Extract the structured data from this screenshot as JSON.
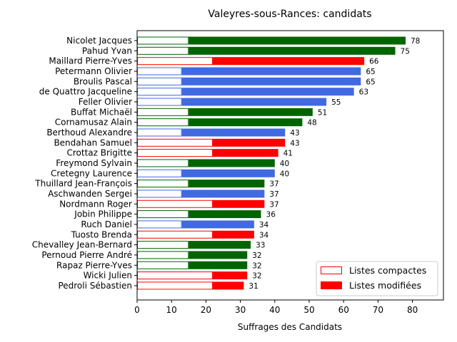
{
  "chart_data": {
    "type": "bar",
    "orientation": "horizontal",
    "title": "Valeyres-sous-Rances: candidats",
    "xlabel": "Suffrages des Candidats",
    "ylabel": "",
    "xlim": [
      0,
      89
    ],
    "xticks": [
      0,
      10,
      20,
      30,
      40,
      50,
      60,
      70,
      80
    ],
    "grid": false,
    "legend": {
      "placement": "lower-right",
      "entries": [
        {
          "name": "Listes compactes",
          "style": "outline",
          "color": "#ff0000"
        },
        {
          "name": "Listes modifiées",
          "style": "filled",
          "color": "#ff0000"
        }
      ]
    },
    "party_colors": {
      "green": "#006400",
      "red": "#ff0000",
      "blue": "#4169e1"
    },
    "candidates": [
      {
        "name": "Nicolet Jacques",
        "total": 78,
        "compact": 15,
        "party": "green"
      },
      {
        "name": "Pahud Yvan",
        "total": 75,
        "compact": 15,
        "party": "green"
      },
      {
        "name": "Maillard Pierre-Yves",
        "total": 66,
        "compact": 22,
        "party": "red"
      },
      {
        "name": "Petermann Olivier",
        "total": 65,
        "compact": 13,
        "party": "blue"
      },
      {
        "name": "Broulis Pascal",
        "total": 65,
        "compact": 13,
        "party": "blue"
      },
      {
        "name": "de Quattro Jacqueline",
        "total": 63,
        "compact": 13,
        "party": "blue"
      },
      {
        "name": "Feller Olivier",
        "total": 55,
        "compact": 13,
        "party": "blue"
      },
      {
        "name": "Buffat Michaël",
        "total": 51,
        "compact": 15,
        "party": "green"
      },
      {
        "name": "Cornamusaz Alain",
        "total": 48,
        "compact": 15,
        "party": "green"
      },
      {
        "name": "Berthoud Alexandre",
        "total": 43,
        "compact": 13,
        "party": "blue"
      },
      {
        "name": "Bendahan Samuel",
        "total": 43,
        "compact": 22,
        "party": "red"
      },
      {
        "name": "Crottaz Brigitte",
        "total": 41,
        "compact": 22,
        "party": "red"
      },
      {
        "name": "Freymond Sylvain",
        "total": 40,
        "compact": 15,
        "party": "green"
      },
      {
        "name": "Cretegny Laurence",
        "total": 40,
        "compact": 13,
        "party": "blue"
      },
      {
        "name": "Thuillard Jean-François",
        "total": 37,
        "compact": 15,
        "party": "green"
      },
      {
        "name": "Aschwanden Sergei",
        "total": 37,
        "compact": 13,
        "party": "blue"
      },
      {
        "name": "Nordmann Roger",
        "total": 37,
        "compact": 22,
        "party": "red"
      },
      {
        "name": "Jobin Philippe",
        "total": 36,
        "compact": 15,
        "party": "green"
      },
      {
        "name": "Ruch Daniel",
        "total": 34,
        "compact": 13,
        "party": "blue"
      },
      {
        "name": "Tuosto Brenda",
        "total": 34,
        "compact": 22,
        "party": "red"
      },
      {
        "name": "Chevalley Jean-Bernard",
        "total": 33,
        "compact": 15,
        "party": "green"
      },
      {
        "name": "Pernoud Pierre André",
        "total": 32,
        "compact": 15,
        "party": "green"
      },
      {
        "name": "Rapaz Pierre-Yves",
        "total": 32,
        "compact": 15,
        "party": "green"
      },
      {
        "name": "Wicki Julien",
        "total": 32,
        "compact": 22,
        "party": "red"
      },
      {
        "name": "Pedroli Sébastien",
        "total": 31,
        "compact": 22,
        "party": "red"
      }
    ]
  }
}
